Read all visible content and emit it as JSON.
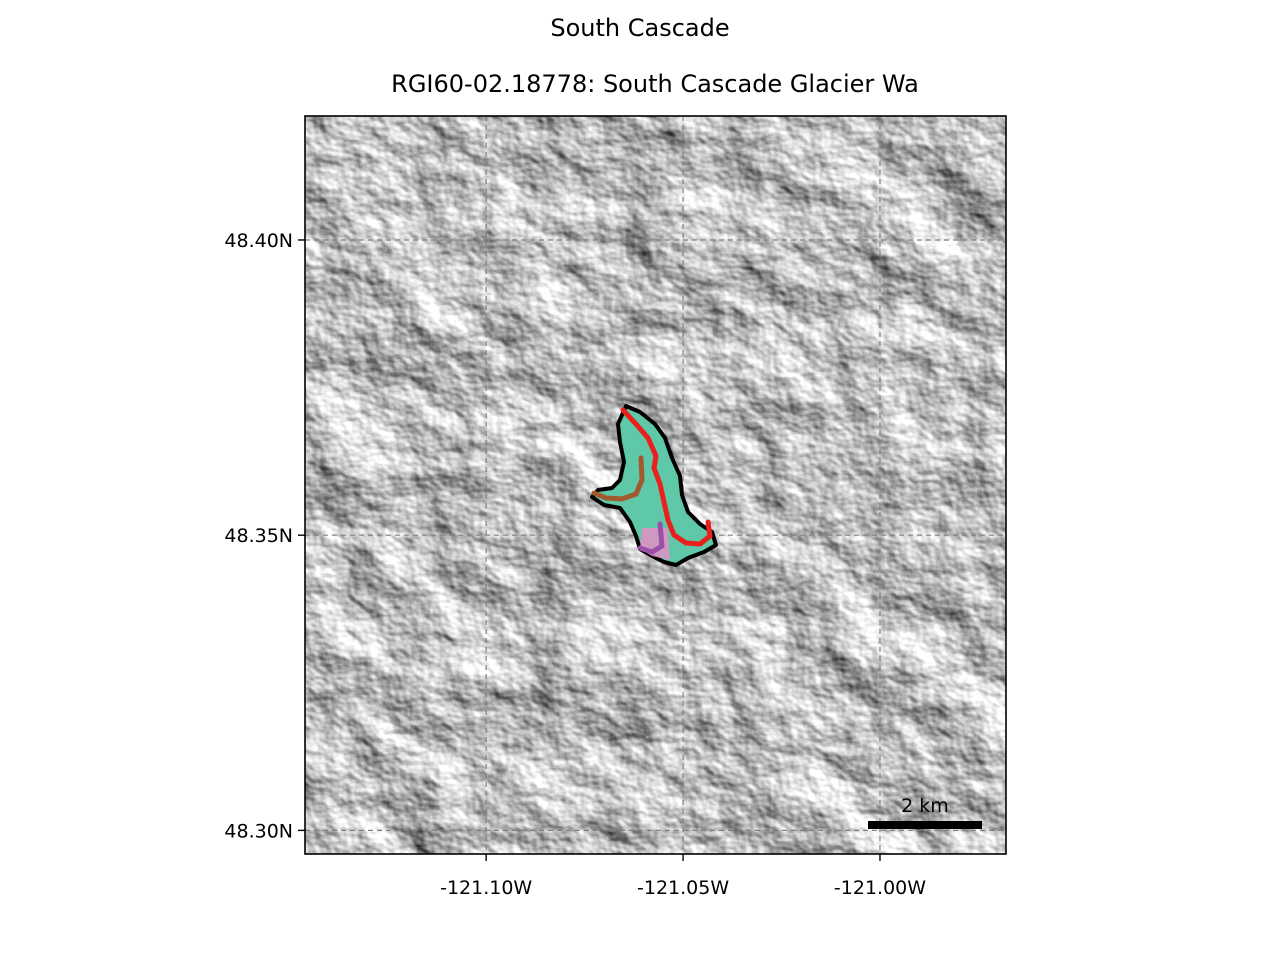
{
  "figure": {
    "suptitle": "South Cascade",
    "title": "RGI60-02.18778: South Cascade Glacier Wa"
  },
  "map": {
    "basemap": "hillshade-grayscale",
    "lon_range": [
      -121.146,
      -120.968
    ],
    "lat_range": [
      48.296,
      48.421
    ],
    "x_ticks": [
      {
        "value": -121.1,
        "label": "-121.10W"
      },
      {
        "value": -121.05,
        "label": "-121.05W"
      },
      {
        "value": -121.0,
        "label": "-121.00W"
      }
    ],
    "y_ticks": [
      {
        "value": 48.4,
        "label": "48.40N"
      },
      {
        "value": 48.35,
        "label": "48.35N"
      },
      {
        "value": 48.3,
        "label": "48.30N"
      }
    ],
    "gridlines": true,
    "scale_bar": {
      "label": "2 km",
      "position": "bottom-right",
      "color": "#000000"
    },
    "glacier": {
      "outline_color": "#000000",
      "fill_color": "#5fc8a8",
      "flowline_colors": {
        "main": "#e8201e",
        "tributary_brown": "#a05a2c",
        "tributary_purple": "#9b4fa8",
        "tributary_pink": "#e28fc6"
      }
    }
  }
}
